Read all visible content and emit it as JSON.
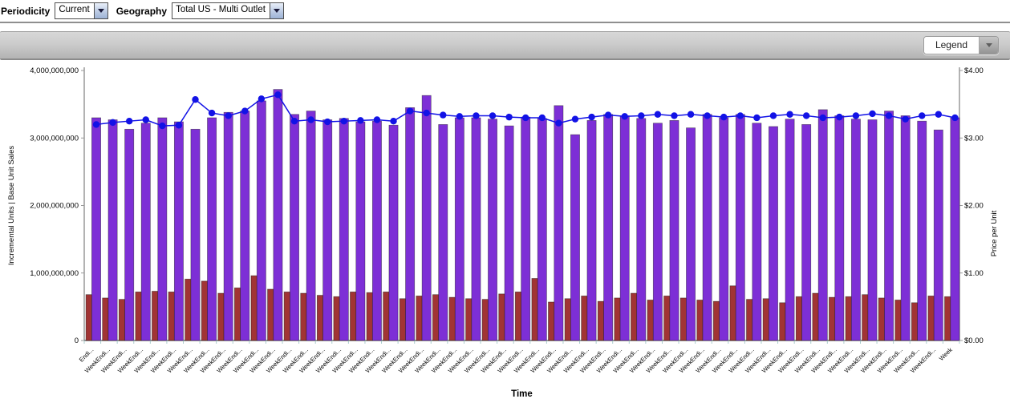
{
  "header": {
    "periodicity_label": "Periodicity",
    "periodicity_value": "Current",
    "geography_label": "Geography",
    "geography_value": "Total US - Multi Outlet"
  },
  "toolbar": {
    "legend_label": "Legend"
  },
  "chart_data": {
    "type": "bar",
    "overlay": "line",
    "title": "",
    "xlabel": "Time",
    "ylabel_left": "Incremental Units | Base Unit Sales",
    "ylabel_right": "Price per Unit",
    "ylim_left": [
      0,
      4000000000
    ],
    "ylim_right": [
      0,
      4
    ],
    "y_ticks_left": [
      "0",
      "1,000,000,000",
      "2,000,000,000",
      "3,000,000,000",
      "4,000,000,000"
    ],
    "y_ticks_right": [
      "$0.00",
      "$1.00",
      "$2.00",
      "$3.00",
      "$4.00"
    ],
    "grid": false,
    "legend_position": "collapsed-dropdown",
    "categories": [
      "Endi...",
      "WeekEndi...",
      "WeekEndi...",
      "WeekEndi...",
      "WeekEndi...",
      "WeekEndi...",
      "WeekEndi...",
      "WeekEndi...",
      "WeekEndi...",
      "WeekEndi...",
      "WeekEndi...",
      "WeekEndi...",
      "WeekEndi...",
      "WeekEndi...",
      "WeekEndi...",
      "WeekEndi...",
      "WeekEndi...",
      "WeekEndi...",
      "WeekEndi...",
      "WeekEndi...",
      "WeekEndi...",
      "WeekEndi...",
      "WeekEndi...",
      "WeekEndi...",
      "WeekEndi...",
      "WeekEndi...",
      "WeekEndi...",
      "WeekEndi...",
      "WeekEndi...",
      "WeekEndi...",
      "WeekEndi...",
      "WeekEndi...",
      "WeekEndi...",
      "WeekEndi...",
      "WeekEndi...",
      "WeekEndi...",
      "WeekEndi...",
      "WeekEndi...",
      "WeekEndi...",
      "WeekEndi...",
      "WeekEndi...",
      "WeekEndi...",
      "WeekEndi...",
      "WeekEndi...",
      "WeekEndi...",
      "WeekEndi...",
      "WeekEndi...",
      "WeekEndi...",
      "WeekEndi...",
      "WeekEndi...",
      "WeekEndi...",
      "WeekEndi...",
      "Week"
    ],
    "series": [
      {
        "name": "Incremental Units",
        "type": "bar",
        "axis": "left",
        "color": "#a13434",
        "values": [
          680000000,
          630000000,
          610000000,
          720000000,
          730000000,
          720000000,
          910000000,
          880000000,
          700000000,
          780000000,
          960000000,
          760000000,
          720000000,
          700000000,
          670000000,
          650000000,
          720000000,
          710000000,
          720000000,
          620000000,
          660000000,
          680000000,
          640000000,
          620000000,
          610000000,
          690000000,
          720000000,
          920000000,
          570000000,
          620000000,
          660000000,
          580000000,
          630000000,
          700000000,
          600000000,
          660000000,
          630000000,
          600000000,
          580000000,
          810000000,
          610000000,
          620000000,
          560000000,
          650000000,
          700000000,
          640000000,
          650000000,
          680000000,
          630000000,
          600000000,
          560000000,
          660000000,
          650000000
        ]
      },
      {
        "name": "Base Unit Sales",
        "type": "bar",
        "axis": "left",
        "color": "#7d2fd6",
        "values": [
          3300000000,
          3270000000,
          3130000000,
          3220000000,
          3300000000,
          3240000000,
          3130000000,
          3300000000,
          3380000000,
          3400000000,
          3550000000,
          3720000000,
          3350000000,
          3400000000,
          3270000000,
          3290000000,
          3240000000,
          3250000000,
          3190000000,
          3450000000,
          3630000000,
          3200000000,
          3300000000,
          3300000000,
          3280000000,
          3180000000,
          3310000000,
          3290000000,
          3480000000,
          3050000000,
          3260000000,
          3350000000,
          3330000000,
          3290000000,
          3220000000,
          3260000000,
          3150000000,
          3350000000,
          3300000000,
          3350000000,
          3220000000,
          3170000000,
          3280000000,
          3200000000,
          3420000000,
          3330000000,
          3280000000,
          3270000000,
          3400000000,
          3330000000,
          3250000000,
          3120000000,
          3300000000
        ]
      },
      {
        "name": "Price per Unit",
        "type": "line",
        "axis": "right",
        "color": "#1212e6",
        "values": [
          3.2,
          3.23,
          3.25,
          3.27,
          3.18,
          3.19,
          3.57,
          3.37,
          3.33,
          3.4,
          3.58,
          3.64,
          3.25,
          3.27,
          3.24,
          3.25,
          3.26,
          3.27,
          3.25,
          3.4,
          3.37,
          3.34,
          3.32,
          3.33,
          3.33,
          3.31,
          3.3,
          3.3,
          3.22,
          3.28,
          3.31,
          3.34,
          3.32,
          3.33,
          3.35,
          3.33,
          3.35,
          3.33,
          3.31,
          3.33,
          3.3,
          3.33,
          3.35,
          3.33,
          3.3,
          3.31,
          3.33,
          3.36,
          3.33,
          3.28,
          3.33,
          3.35,
          3.3
        ]
      }
    ]
  }
}
